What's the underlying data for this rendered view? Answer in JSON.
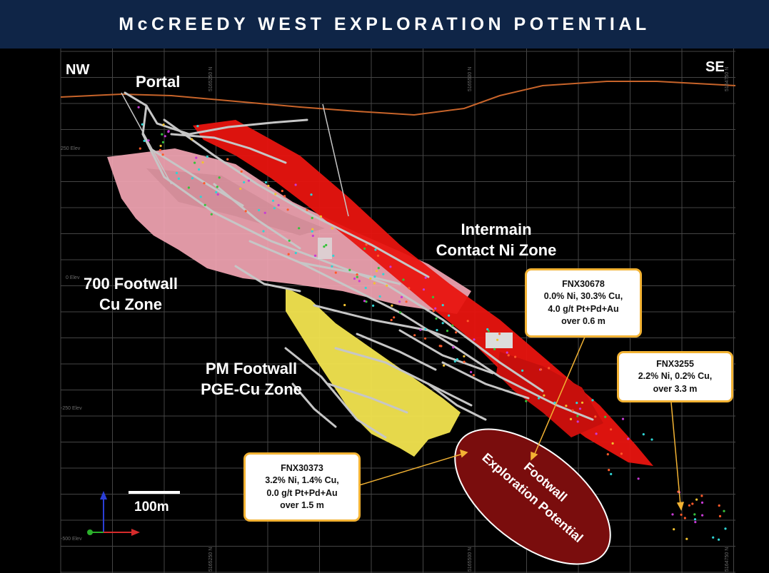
{
  "title": "McCREEDY WEST EXPLORATION POTENTIAL",
  "directions": {
    "left": "NW",
    "right": "SE"
  },
  "labels": {
    "portal": "Portal",
    "intermain_line1": "Intermain",
    "intermain_line2": "Contact Ni Zone",
    "footwall700_line1": "700 Footwall",
    "footwall700_line2": "Cu Zone",
    "pm_line1": "PM Footwall",
    "pm_line2": "PGE-Cu Zone",
    "exploration_line1": "Footwall",
    "exploration_line2": "Exploration Potential"
  },
  "callouts": {
    "fnx30678": [
      "FNX30678",
      "0.0% Ni, 30.3% Cu,",
      "4.0 g/t Pt+Pd+Au",
      "over 0.6 m"
    ],
    "fnx3255": [
      "FNX3255",
      "2.2% Ni, 0.2% Cu,",
      "over 3.3 m"
    ],
    "fnx30373": [
      "FNX30373",
      "3.2% Ni, 1.4% Cu,",
      "0.0 g/t Pt+Pd+Au",
      "over 1.5 m"
    ]
  },
  "scale_bar": {
    "label": "100m"
  },
  "elevation_labels": [
    "250 Elev",
    "0 Elev",
    "-250 Elev",
    "-500 Elev"
  ],
  "grid_coordinates": [
    "5165250 N",
    "5165500 N",
    "5165250 N",
    "5165500 N",
    "5164750 N",
    "5164750 N"
  ],
  "colors": {
    "header_bg": "#0f2547",
    "surface_line": "#c8642a",
    "intermain_zone": "#e8140f",
    "footwall700_zone": "#f2a5b3",
    "pm_zone": "#f2e44f",
    "exploration_fill": "#7a0d0d",
    "callout_border": "#f2b233",
    "workings": "#bdbdbd",
    "grid": "#4a4a4a"
  },
  "icons": [
    "axis-triad-icon"
  ]
}
